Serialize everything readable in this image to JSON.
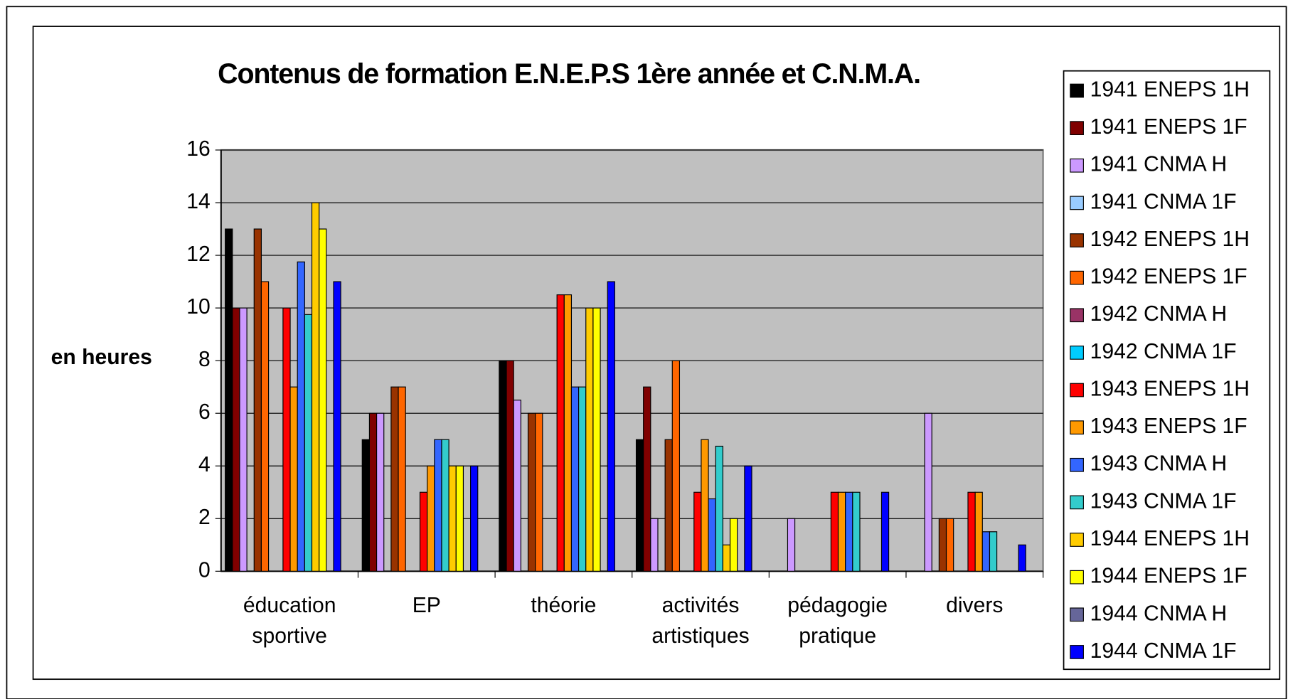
{
  "chart_data": {
    "type": "bar",
    "title": "Contenus de formation E.N.E.P.S 1ère année et C.N.M.A.",
    "y_label": "en heures",
    "categories": [
      "éducation sportive",
      "EP",
      "théorie",
      "activités artistiques",
      "pédagogie pratique",
      "divers"
    ],
    "ylim": [
      0,
      16
    ],
    "yticks": [
      0,
      2,
      4,
      6,
      8,
      10,
      12,
      14,
      16
    ],
    "grid": true,
    "legend": "right",
    "series": [
      {
        "name": "1941 ENEPS 1H",
        "color": "#000000",
        "values": [
          13,
          5,
          8,
          5,
          0,
          0
        ]
      },
      {
        "name": "1941 ENEPS 1F",
        "color": "#800000",
        "values": [
          10,
          6,
          8,
          7,
          0,
          0
        ]
      },
      {
        "name": "1941 CNMA H",
        "color": "#cc99ff",
        "values": [
          10,
          6,
          6.5,
          2,
          2,
          6
        ]
      },
      {
        "name": "1941 CNMA 1F",
        "color": "#99ccff",
        "values": [
          0,
          0,
          0,
          0,
          0,
          0
        ]
      },
      {
        "name": "1942 ENEPS 1H",
        "color": "#993300",
        "values": [
          13,
          7,
          6,
          5,
          0,
          2
        ]
      },
      {
        "name": "1942 ENEPS 1F",
        "color": "#ff6600",
        "values": [
          11,
          7,
          6,
          8,
          0,
          2
        ]
      },
      {
        "name": "1942 CNMA H",
        "color": "#993366",
        "values": [
          0,
          0,
          0,
          0,
          0,
          0
        ]
      },
      {
        "name": "1942 CNMA 1F",
        "color": "#00ccff",
        "values": [
          0,
          0,
          0,
          0,
          0,
          0
        ]
      },
      {
        "name": "1943 ENEPS 1H",
        "color": "#ff0000",
        "values": [
          10,
          3,
          10.5,
          3,
          3,
          3
        ]
      },
      {
        "name": "1943 ENEPS 1F",
        "color": "#ff9900",
        "values": [
          7,
          4,
          10.5,
          5,
          3,
          3
        ]
      },
      {
        "name": "1943 CNMA H",
        "color": "#3366ff",
        "values": [
          11.75,
          5,
          7,
          2.75,
          3,
          1.5
        ]
      },
      {
        "name": "1943 CNMA 1F",
        "color": "#33cccc",
        "values": [
          9.75,
          5,
          7,
          4.75,
          3,
          1.5
        ]
      },
      {
        "name": "1944 ENEPS 1H",
        "color": "#ffcc00",
        "values": [
          14,
          4,
          10,
          1,
          0,
          0
        ]
      },
      {
        "name": "1944 ENEPS 1F",
        "color": "#ffff00",
        "values": [
          13,
          4,
          10,
          2,
          0,
          0
        ]
      },
      {
        "name": "1944 CNMA H",
        "color": "#666699",
        "values": [
          0,
          0,
          0,
          0,
          0,
          0
        ]
      },
      {
        "name": "1944 CNMA 1F",
        "color": "#0000ff",
        "values": [
          11,
          4,
          11,
          4,
          3,
          1
        ]
      }
    ]
  }
}
